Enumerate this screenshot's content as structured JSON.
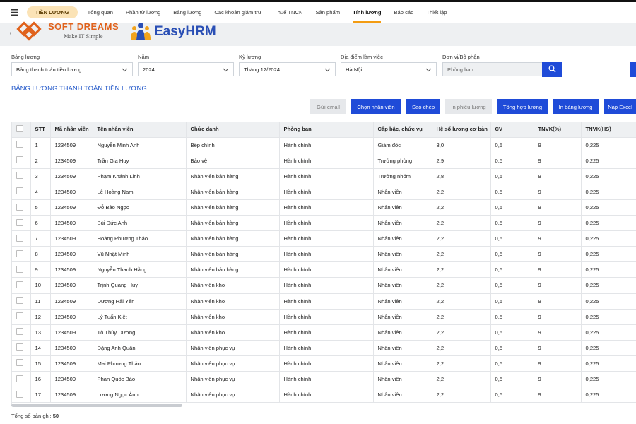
{
  "nav": {
    "module": "TIỀN LƯƠNG",
    "items": [
      "Tổng quan",
      "Phần tử lương",
      "Bảng lương",
      "Các khoản giảm trừ",
      "Thuế TNCN",
      "Sản phẩm",
      "Tính lương",
      "Báo cáo",
      "Thiết lập"
    ],
    "active": "Tính lương"
  },
  "logos": {
    "softdreams_brand": "SOFT DREAMS",
    "softdreams_tagline": "Make IT Simple",
    "easyhrm": "EasyHRM",
    "band_text": "\\"
  },
  "filters": {
    "bang_luong": {
      "label": "Bảng lương",
      "value": "Bảng thanh toán tiền lương"
    },
    "nam": {
      "label": "Năm",
      "value": "2024"
    },
    "ky_luong": {
      "label": "Kỳ lương",
      "value": "Tháng 12/2024"
    },
    "dia_diem": {
      "label": "Địa điểm làm việc",
      "value": "Hà Nội"
    },
    "don_vi": {
      "label": "Đơn vị/Bộ phận",
      "placeholder": "Phòng ban"
    }
  },
  "section_title": "BẢNG LƯƠNG THANH TOÁN TIỀN LƯƠNG",
  "actions": {
    "gui_email": "Gửi email",
    "chon_nhan_vien": "Chọn nhân viên",
    "sao_chep": "Sao chép",
    "in_phieu_luong": "In phiếu lương",
    "tong_hop_luong": "Tổng hợp lương",
    "in_bang_luong": "In bảng lương",
    "nap_excel": "Nạp Excel"
  },
  "table": {
    "headers": [
      "STT",
      "Mã nhân viên",
      "Tên nhân viên",
      "Chức danh",
      "Phòng ban",
      "Cấp bậc, chức vụ",
      "Hệ số lương cơ bản",
      "CV",
      "TNVK(%)",
      "TNVK(HS)"
    ],
    "rows": [
      [
        "1",
        "1234509",
        "Nguyễn Minh Anh",
        "Bếp chính",
        "Hành chính",
        "Giám đốc",
        "3,0",
        "0,5",
        "9",
        "0,225"
      ],
      [
        "2",
        "1234509",
        "Trần Gia Huy",
        "Bảo vệ",
        "Hành chính",
        "Trưởng phòng",
        "2,9",
        "0,5",
        "9",
        "0,225"
      ],
      [
        "3",
        "1234509",
        "Phạm Khánh Linh",
        "Nhân viên bán hàng",
        "Hành chính",
        "Trưởng nhóm",
        "2,8",
        "0,5",
        "9",
        "0,225"
      ],
      [
        "4",
        "1234509",
        "Lê Hoàng Nam",
        "Nhân viên bán hàng",
        "Hành chính",
        "Nhân viên",
        "2,2",
        "0,5",
        "9",
        "0,225"
      ],
      [
        "5",
        "1234509",
        "Đỗ Bảo Ngọc",
        "Nhân viên bán hàng",
        "Hành chính",
        "Nhân viên",
        "2,2",
        "0,5",
        "9",
        "0,225"
      ],
      [
        "6",
        "1234509",
        "Bùi Đức Anh",
        "Nhân viên bán hàng",
        "Hành chính",
        "Nhân viên",
        "2,2",
        "0,5",
        "9",
        "0,225"
      ],
      [
        "7",
        "1234509",
        "Hoàng Phương Thảo",
        "Nhân viên bán hàng",
        "Hành chính",
        "Nhân viên",
        "2,2",
        "0,5",
        "9",
        "0,225"
      ],
      [
        "8",
        "1234509",
        "Vũ Nhật Minh",
        "Nhân viên bán hàng",
        "Hành chính",
        "Nhân viên",
        "2,2",
        "0,5",
        "9",
        "0,225"
      ],
      [
        "9",
        "1234509",
        "Nguyễn Thanh Hằng",
        "Nhân viên bán hàng",
        "Hành chính",
        "Nhân viên",
        "2,2",
        "0,5",
        "9",
        "0,225"
      ],
      [
        "10",
        "1234509",
        "Trịnh Quang Huy",
        "Nhân viên kho",
        "Hành chính",
        "Nhân viên",
        "2,2",
        "0,5",
        "9",
        "0,225"
      ],
      [
        "11",
        "1234509",
        "Dương Hải Yến",
        "Nhân viên kho",
        "Hành chính",
        "Nhân viên",
        "2,2",
        "0,5",
        "9",
        "0,225"
      ],
      [
        "12",
        "1234509",
        "Lý Tuấn Kiệt",
        "Nhân viên kho",
        "Hành chính",
        "Nhân viên",
        "2,2",
        "0,5",
        "9",
        "0,225"
      ],
      [
        "13",
        "1234509",
        "Tô Thùy Dương",
        "Nhân viên kho",
        "Hành chính",
        "Nhân viên",
        "2,2",
        "0,5",
        "9",
        "0,225"
      ],
      [
        "14",
        "1234509",
        "Đặng Anh Quân",
        "Nhân viên phục vụ",
        "Hành chính",
        "Nhân viên",
        "2,2",
        "0,5",
        "9",
        "0,225"
      ],
      [
        "15",
        "1234509",
        "Mai Phương Thảo",
        "Nhân viên phục vụ",
        "Hành chính",
        "Nhân viên",
        "2,2",
        "0,5",
        "9",
        "0,225"
      ],
      [
        "16",
        "1234509",
        "Phan Quốc Bảo",
        "Nhân viên phục vụ",
        "Hành chính",
        "Nhân viên",
        "2,2",
        "0,5",
        "9",
        "0,225"
      ],
      [
        "17",
        "1234509",
        "Lương Ngọc Ánh",
        "Nhân viên phục vụ",
        "Hành chính",
        "Nhân viên",
        "2,2",
        "0,5",
        "9",
        "0,225"
      ]
    ]
  },
  "footer": {
    "label": "Tổng số bản ghi:",
    "count": "50"
  },
  "colors": {
    "primary": "#1f4bd8",
    "title": "#2157c9",
    "module_pill": "#fbe3b6",
    "active_underline": "#f39c12",
    "softdreams": "#e0621c",
    "easyhrm": "#2a4fb5"
  },
  "icons": [
    "menu-icon",
    "chevron-down-icon",
    "search-icon",
    "checkbox-icon"
  ]
}
